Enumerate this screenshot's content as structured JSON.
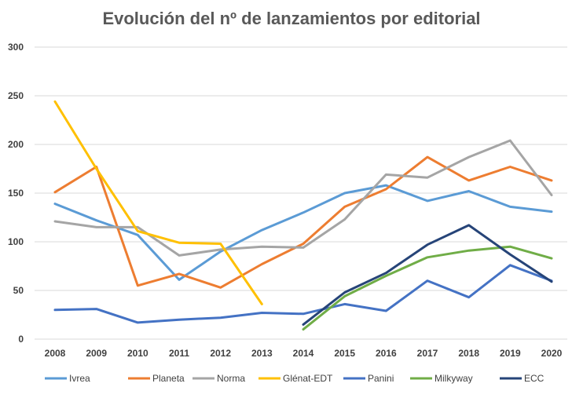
{
  "chart_data": {
    "type": "line",
    "title": "Evolución del nº de lanzamientos por editorial",
    "xlabel": "",
    "ylabel": "",
    "ylim": [
      0,
      300
    ],
    "yticks": [
      0,
      50,
      100,
      150,
      200,
      250,
      300
    ],
    "grid": true,
    "legend": "bottom",
    "categories": [
      "2008",
      "2009",
      "2010",
      "2011",
      "2012",
      "2013",
      "2014",
      "2015",
      "2016",
      "2017",
      "2018",
      "2019",
      "2020"
    ],
    "series": [
      {
        "name": "Ivrea",
        "color": "#5B9BD5",
        "values": [
          139,
          122,
          107,
          61,
          90,
          112,
          130,
          150,
          158,
          142,
          152,
          136,
          131
        ]
      },
      {
        "name": "Planeta",
        "color": "#ED7D31",
        "values": [
          151,
          177,
          55,
          67,
          53,
          77,
          98,
          136,
          154,
          187,
          163,
          177,
          163
        ]
      },
      {
        "name": "Norma",
        "color": "#A5A5A5",
        "values": [
          121,
          115,
          115,
          86,
          92,
          95,
          94,
          123,
          169,
          166,
          187,
          204,
          148
        ]
      },
      {
        "name": "Glénat-EDT",
        "color": "#FFC000",
        "values": [
          244,
          175,
          111,
          99,
          98,
          36,
          null,
          null,
          null,
          null,
          null,
          null,
          null
        ]
      },
      {
        "name": "Panini",
        "color": "#4472C4",
        "values": [
          30,
          31,
          17,
          20,
          22,
          27,
          26,
          36,
          29,
          60,
          43,
          76,
          60
        ]
      },
      {
        "name": "Milkyway",
        "color": "#70AD47",
        "values": [
          null,
          null,
          null,
          null,
          null,
          null,
          10,
          44,
          65,
          84,
          91,
          95,
          83
        ]
      },
      {
        "name": "ECC",
        "color": "#264478",
        "values": [
          null,
          null,
          null,
          null,
          null,
          null,
          15,
          48,
          68,
          97,
          117,
          87,
          59
        ]
      }
    ]
  }
}
